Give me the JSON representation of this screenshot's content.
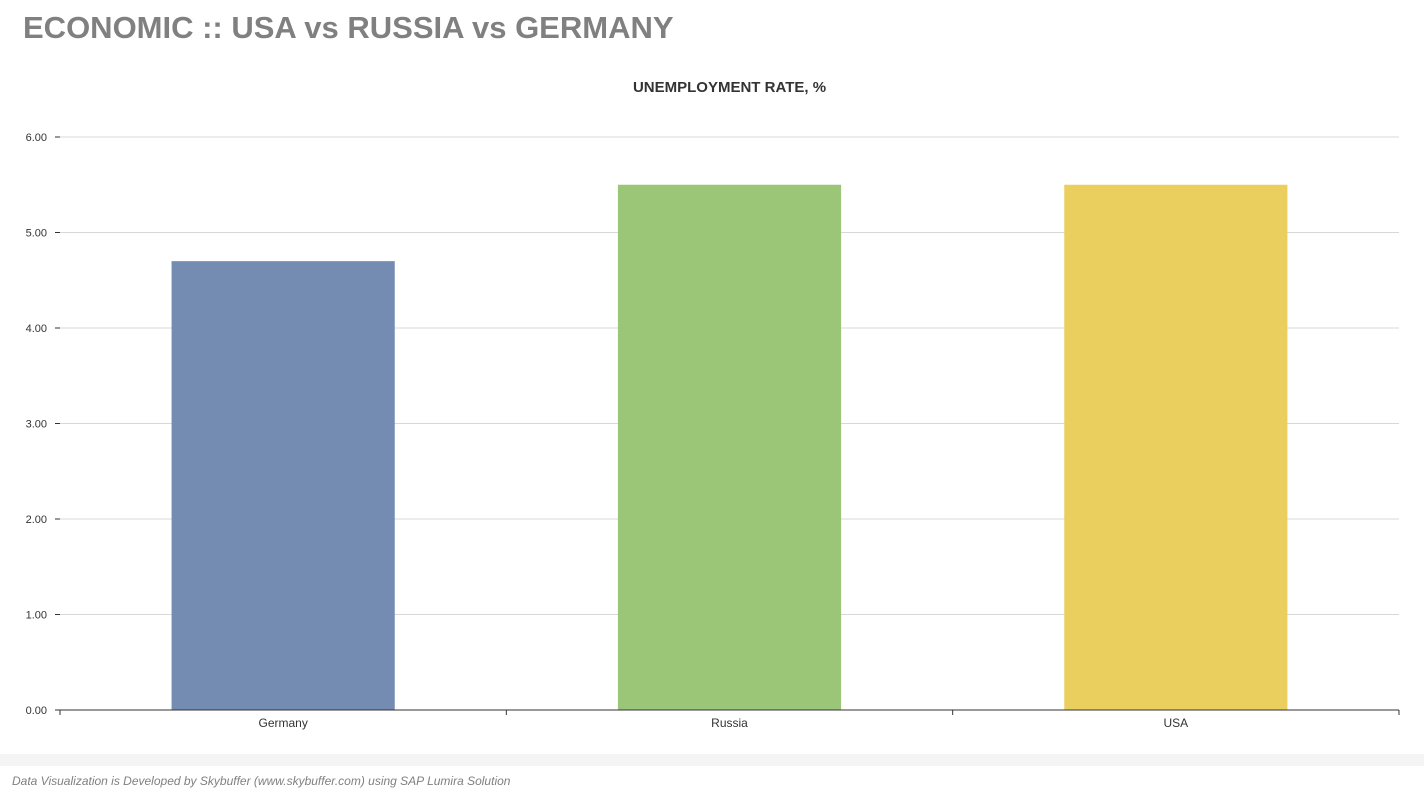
{
  "header": {
    "title": "ECONOMIC :: USA vs RUSSIA vs GERMANY"
  },
  "footer": {
    "credit": "Data Visualization is Developed by Skybuffer (www.skybuffer.com) using SAP Lumira Solution"
  },
  "chart_data": {
    "type": "bar",
    "title": "UNEMPLOYMENT RATE, %",
    "xlabel": "",
    "ylabel": "",
    "categories": [
      "Germany",
      "Russia",
      "USA"
    ],
    "values": [
      4.7,
      5.5,
      5.5
    ],
    "colors": [
      "#748cb2",
      "#9cc677",
      "#eacf5e"
    ],
    "ylim": [
      0,
      6
    ],
    "yticks": [
      "0.00",
      "1.00",
      "2.00",
      "3.00",
      "4.00",
      "5.00",
      "6.00"
    ],
    "grid": true,
    "legend": "none"
  }
}
